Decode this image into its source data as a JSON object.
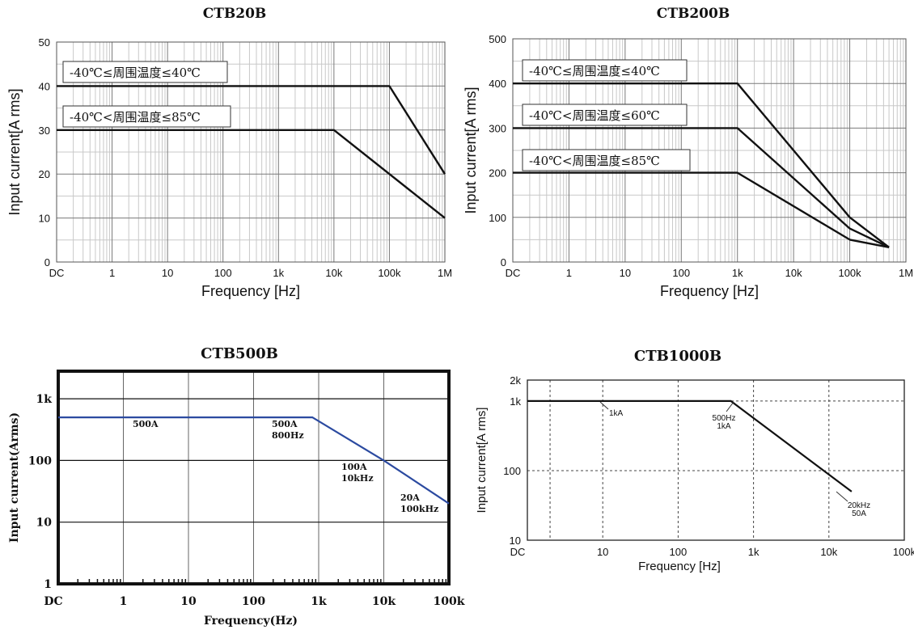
{
  "chart_data": [
    {
      "type": "line",
      "title": "CTB20B",
      "xlabel": "Frequency [Hz]",
      "ylabel": "Input current[A rms]",
      "x_ticks": [
        "DC",
        "1",
        "10",
        "100",
        "1k",
        "10k",
        "100k",
        "1M"
      ],
      "y_ticks": [
        "0",
        "10",
        "20",
        "30",
        "40",
        "50"
      ],
      "ylim": [
        0,
        50
      ],
      "series": [
        {
          "name": "-40℃≤周围温度≤40℃",
          "x": [
            "DC",
            1000,
            100000,
            1000000
          ],
          "values": [
            40,
            40,
            40,
            20
          ]
        },
        {
          "name": "-40℃<周围温度≤85℃",
          "x": [
            "DC",
            1000,
            10000,
            1000000
          ],
          "values": [
            30,
            30,
            30,
            10
          ]
        }
      ]
    },
    {
      "type": "line",
      "title": "CTB200B",
      "xlabel": "Frequency [Hz]",
      "ylabel": "Input current[A rms]",
      "x_ticks": [
        "DC",
        "1",
        "10",
        "100",
        "1k",
        "10k",
        "100k",
        "1M"
      ],
      "y_ticks": [
        "0",
        "100",
        "200",
        "300",
        "400",
        "500"
      ],
      "ylim": [
        0,
        500
      ],
      "series": [
        {
          "name": "-40℃≤周围温度≤40℃",
          "x": [
            "DC",
            1000,
            100000,
            500000
          ],
          "values": [
            400,
            400,
            100,
            33
          ]
        },
        {
          "name": "-40℃<周围温度≤60℃",
          "x": [
            "DC",
            1000,
            100000,
            500000
          ],
          "values": [
            300,
            300,
            75,
            33
          ]
        },
        {
          "name": "-40℃<周围温度≤85℃",
          "x": [
            "DC",
            1000,
            100000,
            500000
          ],
          "values": [
            200,
            200,
            50,
            33
          ]
        }
      ]
    },
    {
      "type": "line",
      "title": "CTB500B",
      "xlabel": "Frequency(Hz)",
      "ylabel": "Input current(Arms)",
      "x_ticks": [
        "DC",
        "1",
        "10",
        "100",
        "1k",
        "10k",
        "100k"
      ],
      "y_ticks": [
        "1",
        "10",
        "100",
        "1k"
      ],
      "series": [
        {
          "name": "CTB500B",
          "x": [
            "DC",
            800,
            10000,
            100000
          ],
          "values": [
            500,
            500,
            100,
            20
          ]
        }
      ],
      "annotations": [
        {
          "lines": [
            "500A"
          ],
          "x": "1",
          "y": 500
        },
        {
          "lines": [
            "500A",
            "800Hz"
          ],
          "x": 800,
          "y": 500
        },
        {
          "lines": [
            "100A",
            "10kHz"
          ],
          "x": 10000,
          "y": 100
        },
        {
          "lines": [
            "20A",
            "100kHz"
          ],
          "x": 100000,
          "y": 20
        }
      ]
    },
    {
      "type": "line",
      "title": "CTB1000B",
      "xlabel": "Frequency [Hz]",
      "ylabel": "Input current[A rms]",
      "x_ticks": [
        "DC",
        "10",
        "100",
        "1k",
        "10k",
        "100k"
      ],
      "y_ticks": [
        "10",
        "100",
        "1k",
        "2k"
      ],
      "series": [
        {
          "name": "CTB1000B",
          "x": [
            "DC",
            500,
            20000
          ],
          "values": [
            1000,
            1000,
            50
          ]
        }
      ],
      "annotations": [
        {
          "lines": [
            "1kA"
          ]
        },
        {
          "lines": [
            "500Hz",
            "1kA"
          ]
        },
        {
          "lines": [
            "20kHz",
            "50A"
          ]
        }
      ]
    }
  ]
}
